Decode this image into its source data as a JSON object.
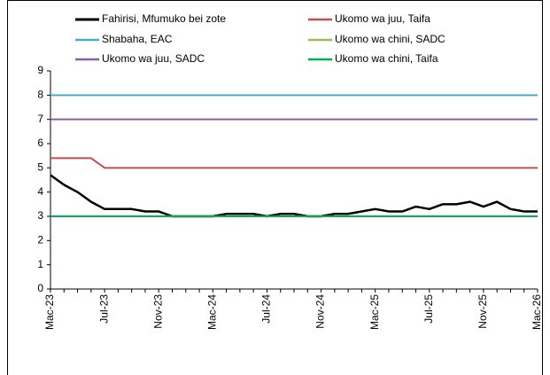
{
  "chart_data": {
    "type": "line",
    "categories": [
      "Mac-23",
      null,
      null,
      null,
      "Jul-23",
      null,
      null,
      null,
      "Nov-23",
      null,
      null,
      null,
      "Mac-24",
      null,
      null,
      null,
      "Jul-24",
      null,
      null,
      null,
      "Nov-24",
      null,
      null,
      null,
      "Mac-25",
      null,
      null,
      null,
      "Jul-25",
      null,
      null,
      null,
      "Nov-25",
      null,
      null,
      null,
      "Mac-26"
    ],
    "ylim": [
      0,
      9
    ],
    "yticks": [
      0,
      1,
      2,
      3,
      4,
      5,
      6,
      7,
      8,
      9
    ],
    "grid": false,
    "series": [
      {
        "name": "Fahirisi, Mfumuko bei zote",
        "color": "#000000",
        "width": 2.5,
        "values": [
          4.7,
          4.3,
          4.0,
          3.6,
          3.3,
          3.3,
          3.3,
          3.2,
          3.2,
          3.0,
          3.0,
          3.0,
          3.0,
          3.1,
          3.1,
          3.1,
          3.0,
          3.1,
          3.1,
          3.0,
          3.0,
          3.1,
          3.1,
          3.2,
          3.3,
          3.2,
          3.2,
          3.4,
          3.3,
          3.5,
          3.5,
          3.6,
          3.4,
          3.6,
          3.3,
          3.2,
          3.2
        ]
      },
      {
        "name": "Ukomo wa juu, Taifa",
        "color": "#c0504d",
        "width": 2,
        "values": [
          5.4,
          5.4,
          5.4,
          5.4,
          5.0,
          5.0,
          5.0,
          5.0,
          5.0,
          5.0,
          5.0,
          5.0,
          5.0,
          5.0,
          5.0,
          5.0,
          5.0,
          5.0,
          5.0,
          5.0,
          5.0,
          5.0,
          5.0,
          5.0,
          5.0,
          5.0,
          5.0,
          5.0,
          5.0,
          5.0,
          5.0,
          5.0,
          5.0,
          5.0,
          5.0,
          5.0,
          5.0
        ]
      },
      {
        "name": "Shabaha, EAC",
        "color": "#4bacc6",
        "width": 2,
        "values": [
          8,
          8,
          8,
          8,
          8,
          8,
          8,
          8,
          8,
          8,
          8,
          8,
          8,
          8,
          8,
          8,
          8,
          8,
          8,
          8,
          8,
          8,
          8,
          8,
          8,
          8,
          8,
          8,
          8,
          8,
          8,
          8,
          8,
          8,
          8,
          8,
          8
        ]
      },
      {
        "name": "Ukomo wa chini, SADC",
        "color": "#9bbb59",
        "width": 2,
        "values": [
          3,
          3,
          3,
          3,
          3,
          3,
          3,
          3,
          3,
          3,
          3,
          3,
          3,
          3,
          3,
          3,
          3,
          3,
          3,
          3,
          3,
          3,
          3,
          3,
          3,
          3,
          3,
          3,
          3,
          3,
          3,
          3,
          3,
          3,
          3,
          3,
          3
        ]
      },
      {
        "name": "Ukomo wa juu, SADC",
        "color": "#8064a2",
        "width": 2,
        "values": [
          7,
          7,
          7,
          7,
          7,
          7,
          7,
          7,
          7,
          7,
          7,
          7,
          7,
          7,
          7,
          7,
          7,
          7,
          7,
          7,
          7,
          7,
          7,
          7,
          7,
          7,
          7,
          7,
          7,
          7,
          7,
          7,
          7,
          7,
          7,
          7,
          7
        ]
      },
      {
        "name": "Ukomo wa chini, Taifa",
        "color": "#00b050",
        "width": 2,
        "values": [
          3,
          3,
          3,
          3,
          3,
          3,
          3,
          3,
          3,
          3,
          3,
          3,
          3,
          3,
          3,
          3,
          3,
          3,
          3,
          3,
          3,
          3,
          3,
          3,
          3,
          3,
          3,
          3,
          3,
          3,
          3,
          3,
          3,
          3,
          3,
          3,
          3
        ]
      }
    ]
  }
}
